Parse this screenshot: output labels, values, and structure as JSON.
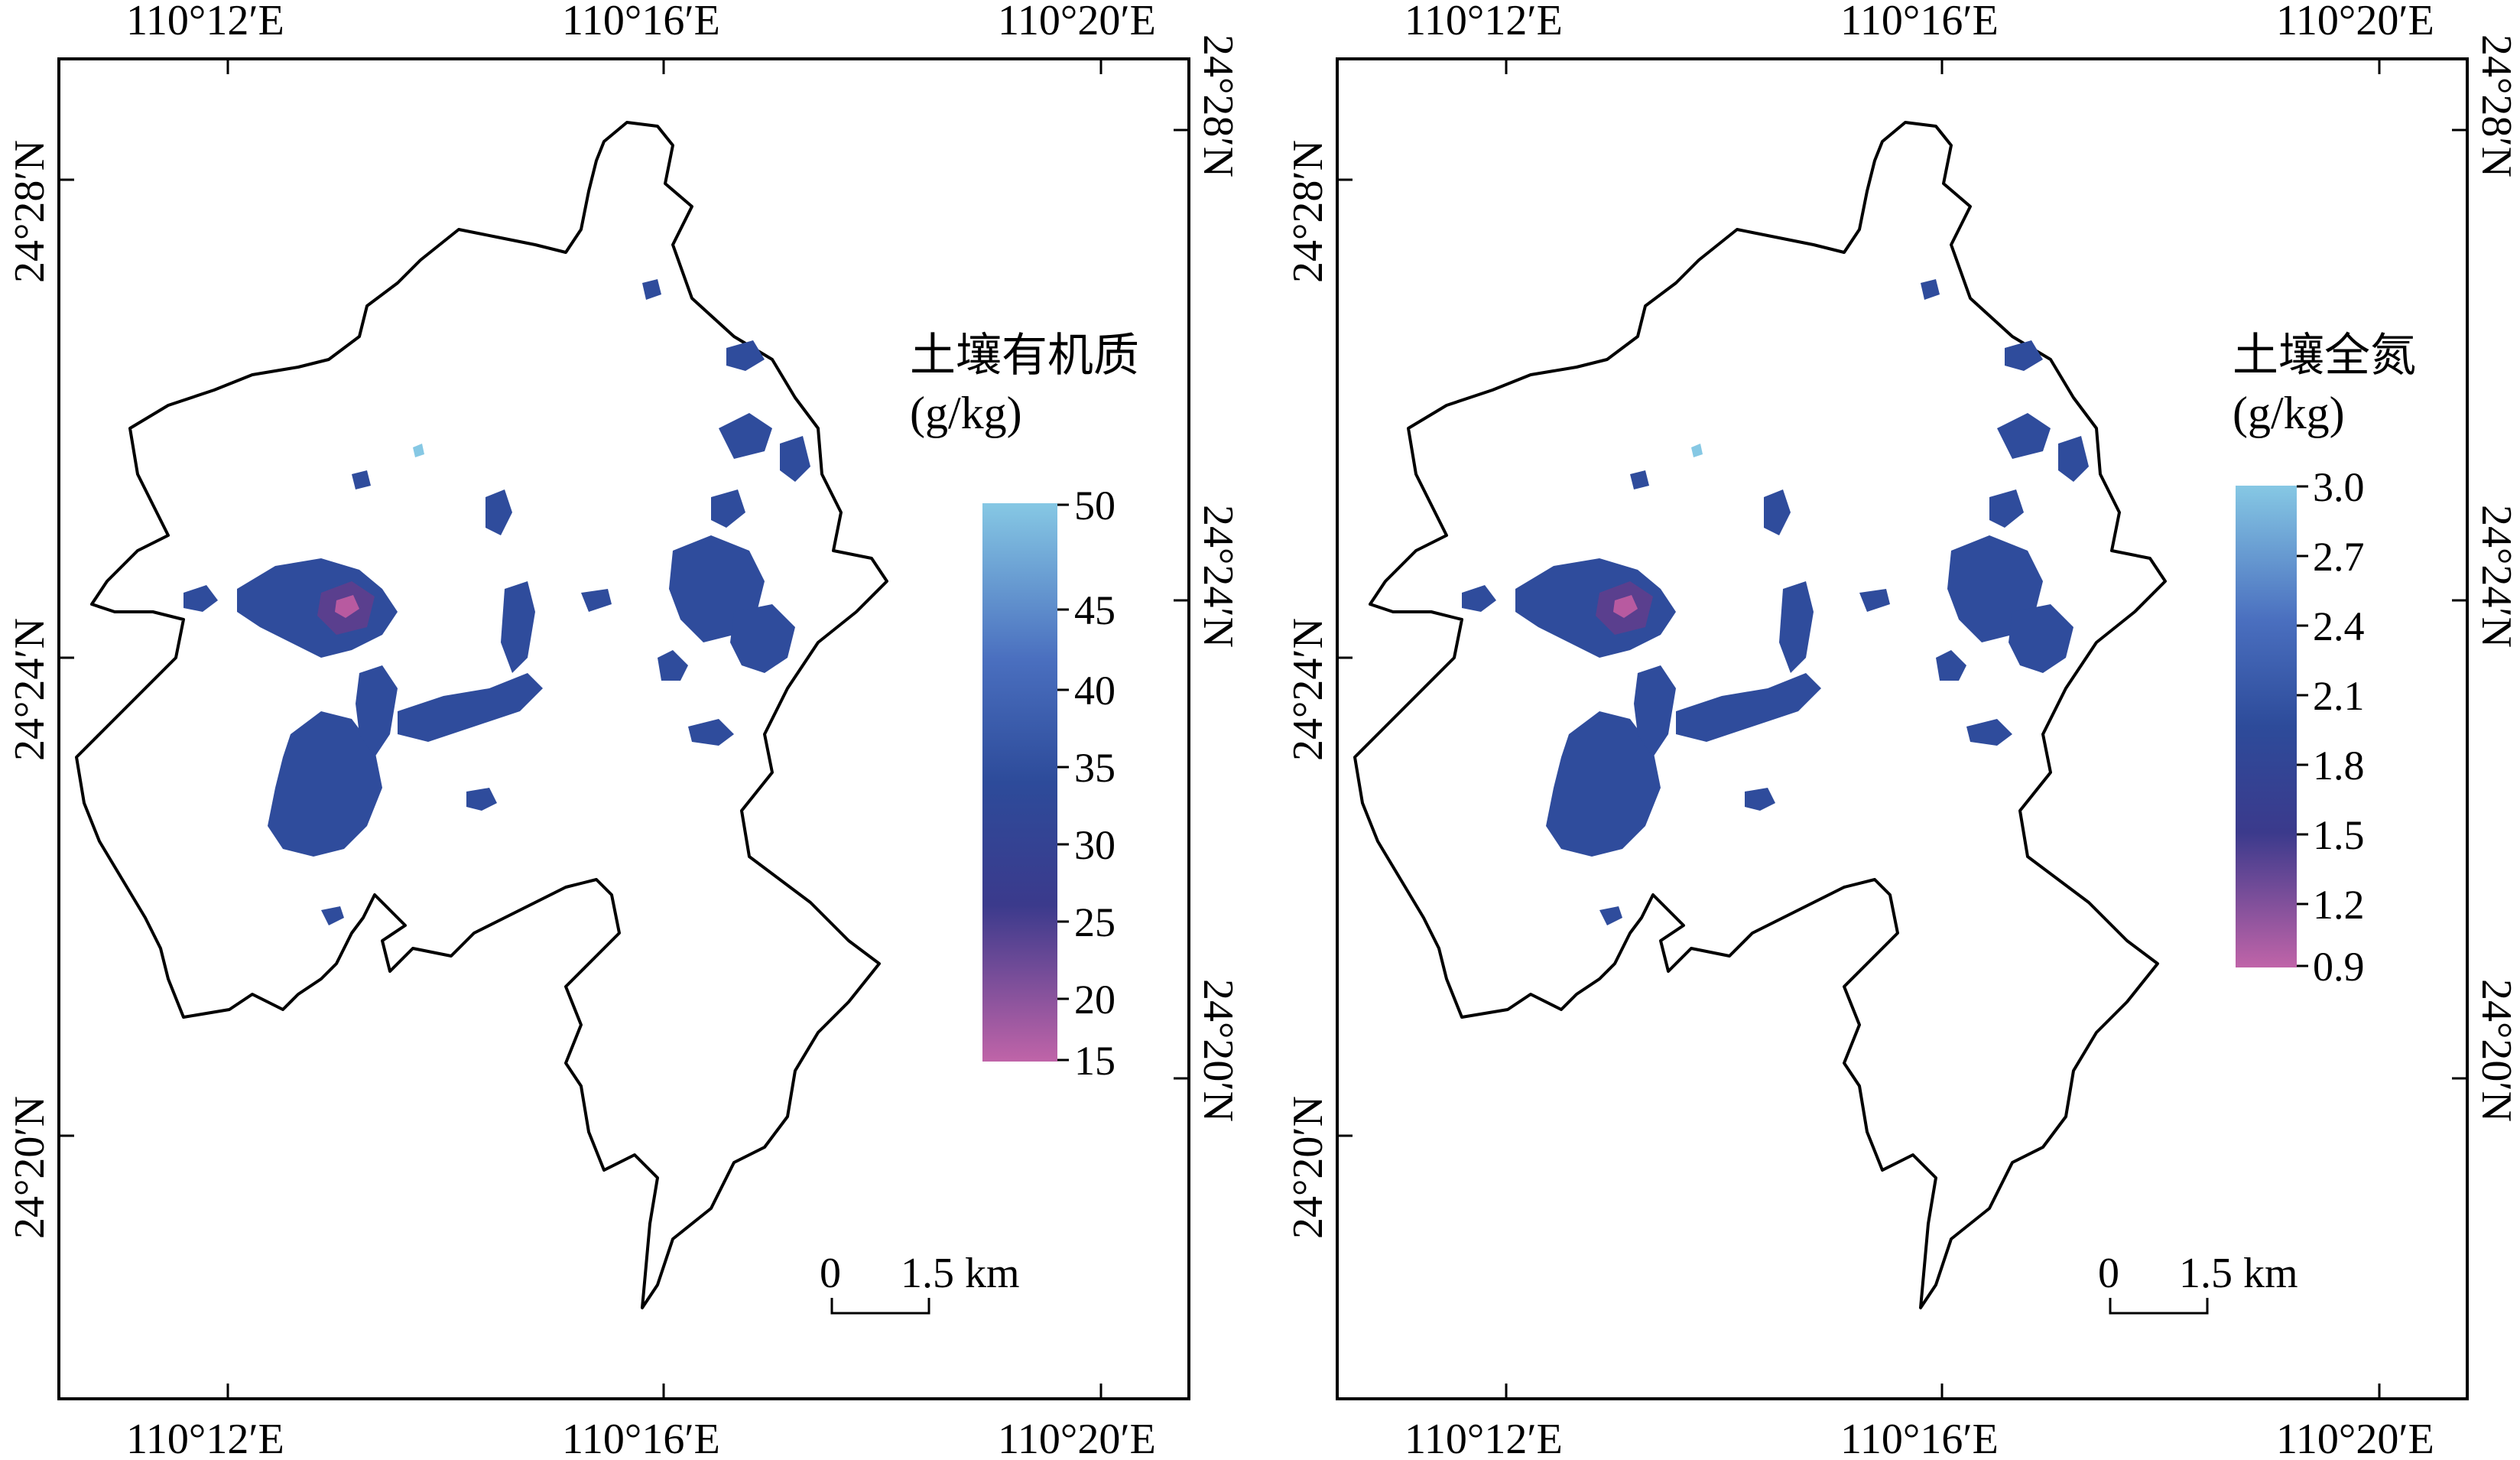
{
  "panels": [
    {
      "id": "soil-organic-matter",
      "legend": {
        "title_line1": "土壤有机质",
        "title_line2": "(g/kg)",
        "ticks": [
          "50",
          "45",
          "40",
          "35",
          "30",
          "25",
          "20",
          "15"
        ],
        "min": 15,
        "max": 50
      },
      "scale_bar": {
        "zero": "0",
        "distance": "1.5 km"
      },
      "axes": {
        "top": [
          "110°12′E",
          "110°16′E",
          "110°20′E"
        ],
        "bottom": [
          "110°12′E",
          "110°16′E",
          "110°20′E"
        ],
        "left": [
          "24°28′N",
          "24°24′N",
          "24°20′N"
        ],
        "right": [
          "24°28′N",
          "24°24′N",
          "24°20′N"
        ]
      }
    },
    {
      "id": "soil-total-nitrogen",
      "legend": {
        "title_line1": "土壤全氮",
        "title_line2": "(g/kg)",
        "ticks": [
          "3.0",
          "2.7",
          "2.4",
          "2.1",
          "1.8",
          "1.5",
          "1.2",
          "0.9"
        ],
        "min": 0.9,
        "max": 3.0
      },
      "scale_bar": {
        "zero": "0",
        "distance": "1.5 km"
      },
      "axes": {
        "top": [
          "110°12′E",
          "110°16′E",
          "110°20′E"
        ],
        "bottom": [
          "110°12′E",
          "110°16′E",
          "110°20′E"
        ],
        "left": [
          "24°28′N",
          "24°24′N",
          "24°20′N"
        ],
        "right": [
          "24°28′N",
          "24°24′N",
          "24°20′N"
        ]
      }
    }
  ],
  "colors": {
    "ramp_high": "#86c8e4",
    "ramp_mid_high": "#4a6fbf",
    "ramp_mid": "#2d4b9a",
    "ramp_mid_low": "#3b3a8c",
    "ramp_low": "#c064a8",
    "patch_main": "#2f4c9c",
    "patch_dark": "#5a3f8e",
    "patch_hot": "#b85aa0"
  }
}
